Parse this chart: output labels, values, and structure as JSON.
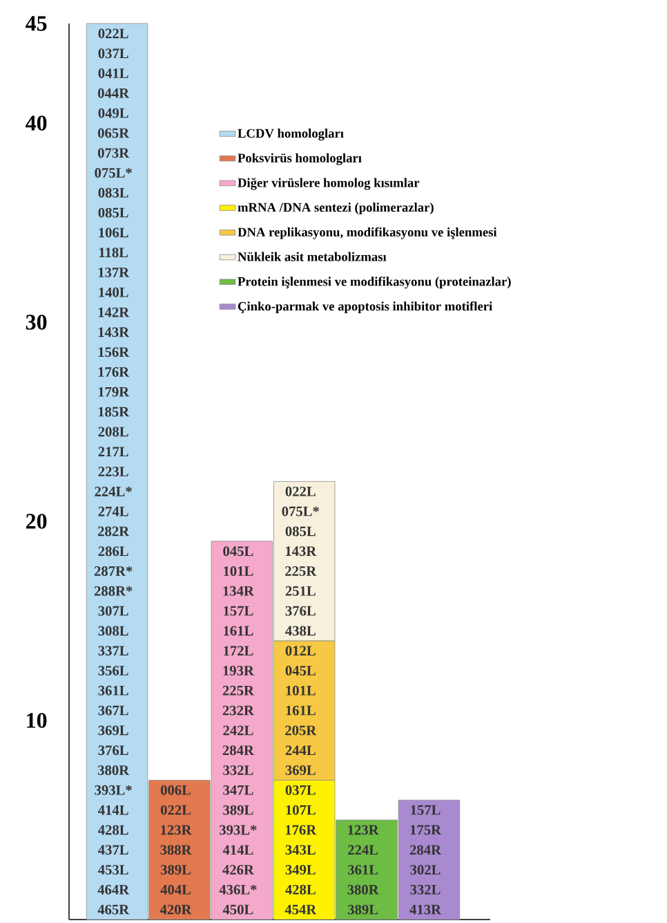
{
  "chart_data": {
    "type": "bar",
    "stacked": true,
    "legend": "top right",
    "grid": false,
    "categories": [
      null,
      null,
      null,
      null,
      null,
      null
    ],
    "ylim": [
      0,
      45
    ],
    "yticks": [
      10,
      20,
      30,
      40,
      45
    ],
    "series": [
      {
        "name": "LCDV homologları",
        "color": "#b5dbf3",
        "values": [
          45,
          null,
          null,
          null,
          null,
          null
        ]
      },
      {
        "name": "Poksvirüs homologları",
        "color": "#e2794f",
        "values": [
          null,
          7,
          null,
          null,
          null,
          null
        ]
      },
      {
        "name": "Diğer virüslere homolog kısımlar",
        "color": "#f4a9cb",
        "values": [
          null,
          null,
          19,
          null,
          null,
          null
        ]
      },
      {
        "name": "mRNA /DNA sentezi (polimerazlar)",
        "color": "#fff200",
        "values": [
          null,
          null,
          null,
          7,
          null,
          null
        ]
      },
      {
        "name": "DNA replikasyonu, modifikasyonu ve işlenmesi",
        "color": "#f7c843",
        "values": [
          null,
          null,
          null,
          7,
          null,
          null
        ]
      },
      {
        "name": "Nükleik asit metabolizması",
        "color": "#f6f0dd",
        "values": [
          null,
          null,
          null,
          8,
          null,
          null
        ]
      },
      {
        "name": "Protein işlenmesi ve modifikasyonu (proteinazlar)",
        "color": "#6dbd45",
        "values": [
          null,
          null,
          null,
          null,
          5,
          null
        ]
      },
      {
        "name": "Çinko-parmak ve apoptosis inhibitor motifleri",
        "color": "#a98ad0",
        "values": [
          null,
          null,
          null,
          null,
          null,
          6
        ]
      }
    ],
    "annotations": [
      "022L",
      "037L",
      "041L",
      "044R",
      "049L",
      "065R",
      "073R",
      "075L*",
      "083L",
      "085L",
      "106L",
      "118L",
      "137R",
      "140L",
      "142R",
      "143R",
      "156R",
      "176R",
      "179R",
      "185R",
      "208L",
      "217L",
      "223L",
      "224L*",
      "274L",
      "282R",
      "286L",
      "287R*",
      "288R*",
      "307L",
      "308L",
      "337L",
      "356L",
      "361L",
      "367L",
      "369L",
      "376L",
      "380R",
      "393L*",
      "414L",
      "428L",
      "437L",
      "453L",
      "464R",
      "465R",
      "006L",
      "022L",
      "123R",
      "388R",
      "389L",
      "404L",
      "420R",
      "045L",
      "101L",
      "134R",
      "157L",
      "161L",
      "172L",
      "193R",
      "225R",
      "232R",
      "242L",
      "284R",
      "332L",
      "347L",
      "389L",
      "393L*",
      "414L",
      "426R",
      "436L*",
      "450L",
      "037L",
      "107L",
      "176R",
      "343L",
      "349L",
      "428L",
      "454R",
      "012L",
      "045L",
      "101L",
      "161L",
      "205R",
      "244L",
      "369L",
      "022L",
      "075L*",
      "085L",
      "143R",
      "225R",
      "251L",
      "376L",
      "438L",
      "123R",
      "224L",
      "361L",
      "380R",
      "389L",
      "157L",
      "175R",
      "284R",
      "302L",
      "332L",
      "413R"
    ]
  }
}
